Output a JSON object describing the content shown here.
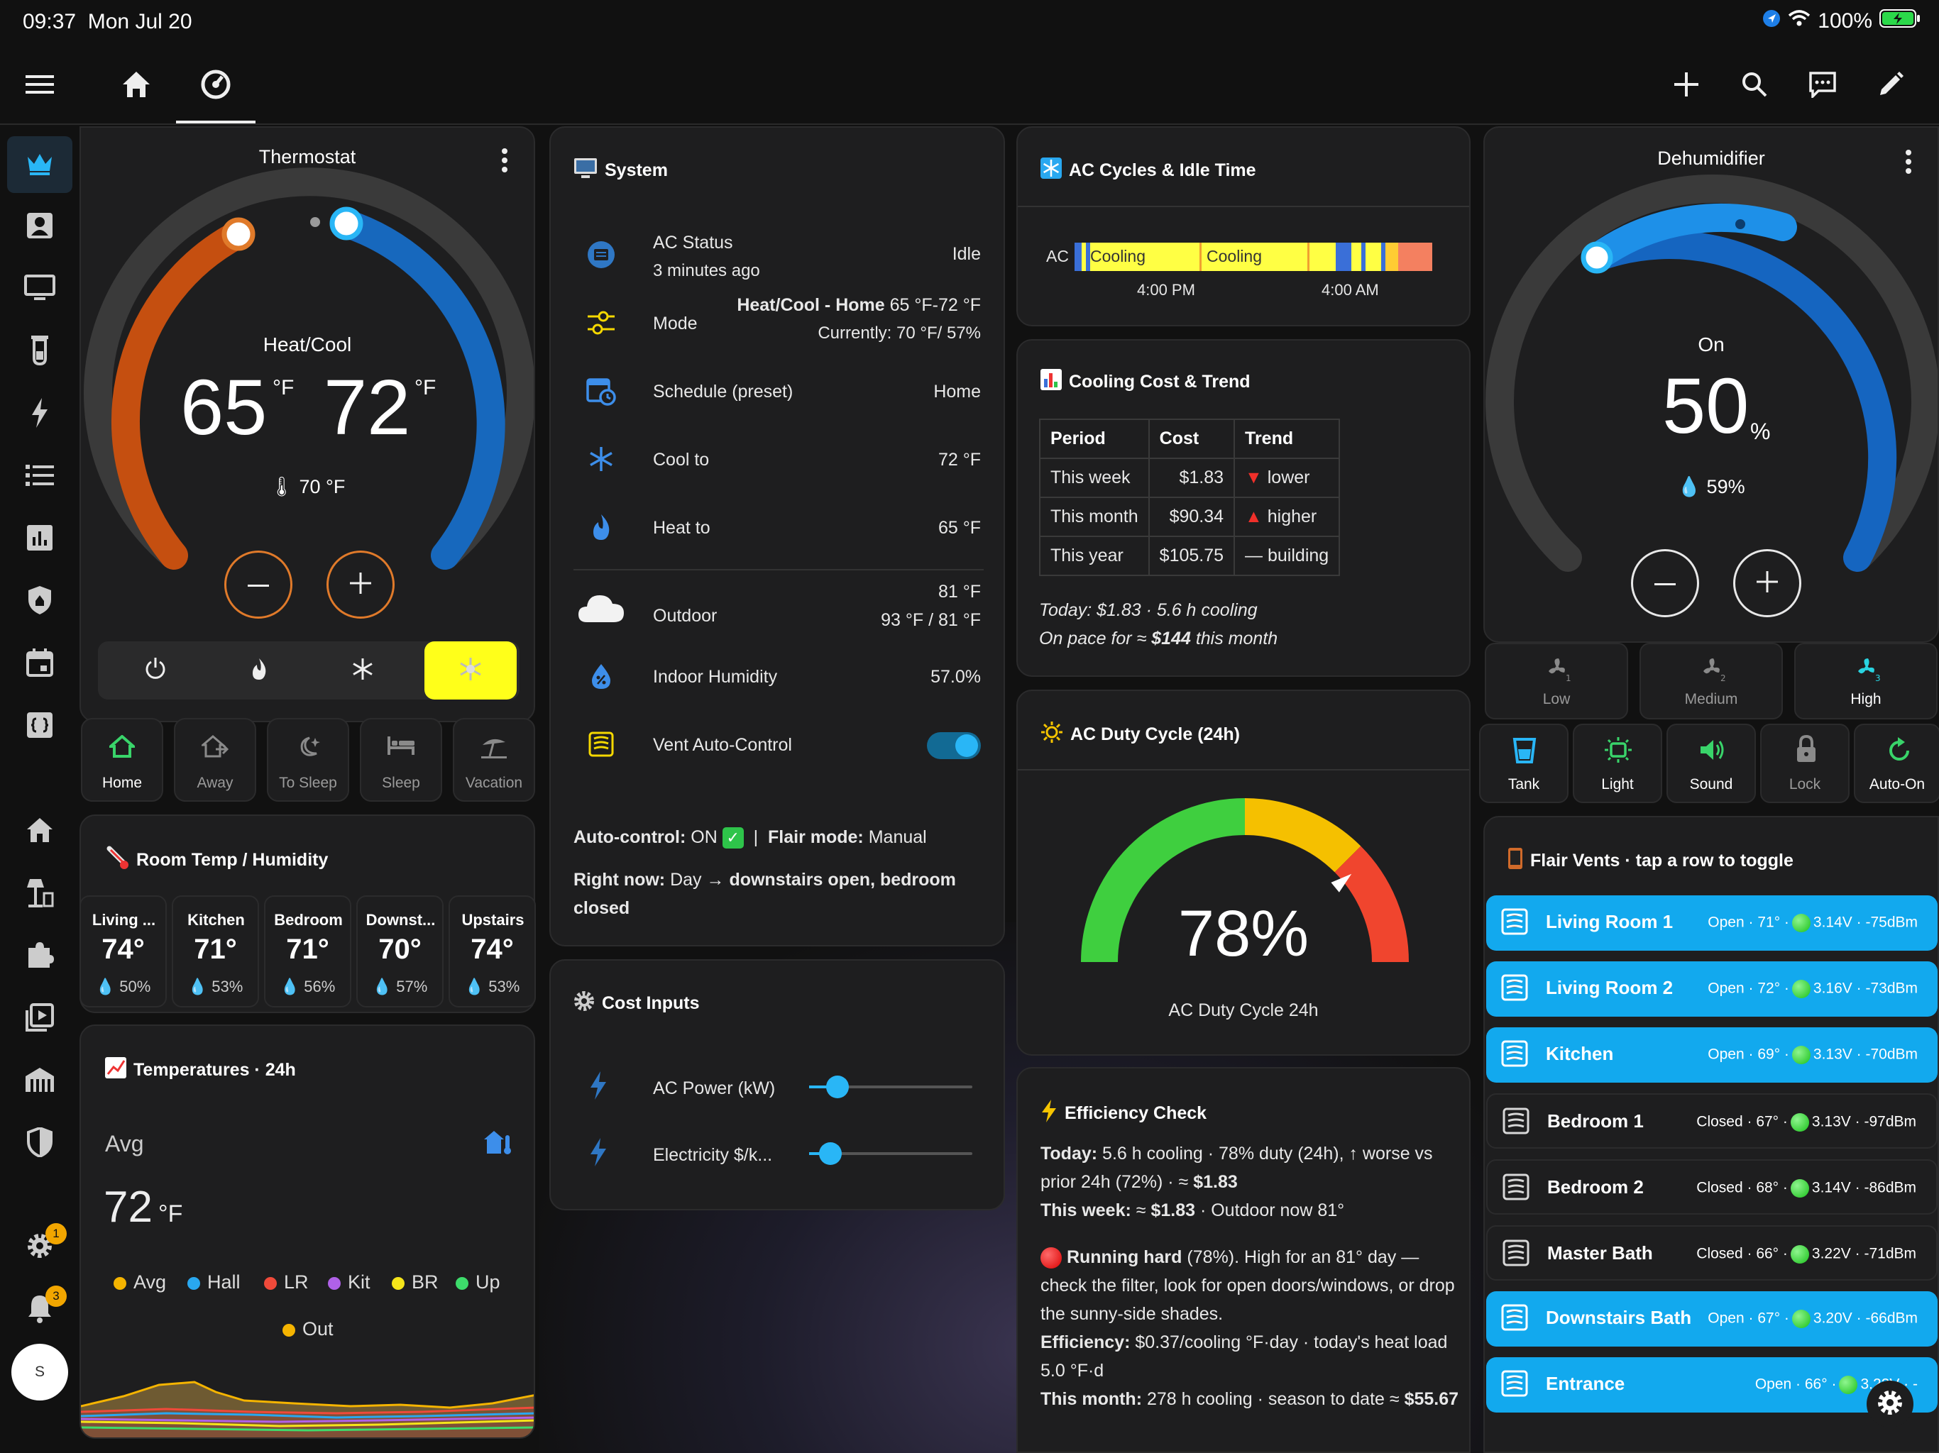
{
  "status_bar": {
    "time": "09:37",
    "date": "Mon Jul 20",
    "battery": "100%"
  },
  "thermostat": {
    "title": "Thermostat",
    "mode_label": "Heat/Cool",
    "heat_setpoint": "65",
    "cool_setpoint": "72",
    "unit": "°F",
    "current_temp": "70 °F",
    "presets": [
      "Home",
      "Away",
      "To Sleep",
      "Sleep",
      "Vacation"
    ]
  },
  "system": {
    "title": "System",
    "ac_status": {
      "label": "AC Status",
      "sub": "3 minutes ago",
      "value": "Idle"
    },
    "mode": {
      "label": "Mode",
      "value_bold": "Heat/Cool - Home",
      "value_rest": " 65 °F-72 °F",
      "sub": "Currently: 70 °F/ 57%"
    },
    "schedule": {
      "label": "Schedule (preset)",
      "value": "Home"
    },
    "cool_to": {
      "label": "Cool to",
      "value": "72 °F"
    },
    "heat_to": {
      "label": "Heat to",
      "value": "65 °F"
    },
    "outdoor": {
      "label": "Outdoor",
      "value": "81 °F",
      "sub": "93 °F / 81 °F"
    },
    "humidity": {
      "label": "Indoor Humidity",
      "value": "57.0%"
    },
    "vent": {
      "label": "Vent Auto-Control"
    },
    "auto_line": {
      "a": "Auto-control:",
      "b": " ON ",
      "c": "|",
      "d": "Flair mode:",
      "e": " Manual"
    },
    "right_now": {
      "a": "Right now:",
      "b": " Day → ",
      "c": "downstairs open, bedroom closed"
    }
  },
  "cost_inputs": {
    "title": "Cost Inputs",
    "power": "AC Power (kW)",
    "price": "Electricity $/k..."
  },
  "room_temp": {
    "title": "Room Temp / Humidity",
    "rooms": [
      {
        "name": "Living ...",
        "temp": "74°",
        "hum": "50%"
      },
      {
        "name": "Kitchen",
        "temp": "71°",
        "hum": "53%"
      },
      {
        "name": "Bedroom",
        "temp": "71°",
        "hum": "56%"
      },
      {
        "name": "Downst...",
        "temp": "70°",
        "hum": "57%"
      },
      {
        "name": "Upstairs",
        "temp": "74°",
        "hum": "53%"
      }
    ]
  },
  "temps_24h": {
    "title": "Temperatures · 24h",
    "avg_label": "Avg",
    "avg_value": "72",
    "unit": "°F",
    "legend": [
      "Avg",
      "Hall",
      "LR",
      "Kit",
      "BR",
      "Up",
      "Out"
    ],
    "colors": [
      "#f5b400",
      "#29a8f0",
      "#f04a3a",
      "#b061e8",
      "#f5e51a",
      "#3ddc6b",
      "#f5b400"
    ]
  },
  "ac_cycles": {
    "title": "AC Cycles & Idle Time",
    "row_label": "AC",
    "seg1": "Cooling",
    "seg2": "Cooling",
    "t1": "4:00 PM",
    "t2": "4:00 AM"
  },
  "cooling_cost": {
    "title": "Cooling Cost & Trend",
    "headers": [
      "Period",
      "Cost",
      "Trend"
    ],
    "rows": [
      {
        "period": "This week",
        "cost": "$1.83",
        "trend": "▼ lower"
      },
      {
        "period": "This month",
        "cost": "$90.34",
        "trend": "▲ higher"
      },
      {
        "period": "This year",
        "cost": "$105.75",
        "trend": "— building"
      }
    ],
    "today": "Today: $1.83 · 5.6 h cooling",
    "pace_a": "On pace for ≈ ",
    "pace_b": "$144",
    "pace_c": " this month"
  },
  "duty": {
    "title": "AC Duty Cycle (24h)",
    "value": "78%",
    "label": "AC Duty Cycle 24h",
    "percent": 78
  },
  "efficiency": {
    "title": "Efficiency Check",
    "l1b": "Today:",
    "l1": " 5.6 h cooling · 78% duty (24h), ↑ worse vs prior 24h (72%) · ≈ ",
    "l1c": "$1.83",
    "l2b": "This week:",
    "l2": " ≈ ",
    "l2c": "$1.83",
    "l2d": " · Outdoor now 81°",
    "l3b": "Running hard",
    "l3": " (78%). High for an 81° day — check the filter, look for open doors/windows, or drop the sunny-side shades.",
    "l4b": "Efficiency:",
    "l4": " $0.37/cooling °F·day · today's heat load 5.0 °F·d",
    "l5b": "This month:",
    "l5": " 278 h cooling · season to date ≈ ",
    "l5c": "$55.67"
  },
  "dehumidifier": {
    "title": "Dehumidifier",
    "state": "On",
    "target": "50",
    "unit": "%",
    "current": "59%",
    "fans": [
      "Low",
      "Medium",
      "High"
    ],
    "features": [
      "Tank",
      "Light",
      "Sound",
      "Lock",
      "Auto-On"
    ]
  },
  "flair": {
    "title": "Flair Vents · tap a row to toggle",
    "vents": [
      {
        "name": "Living Room 1",
        "state": "Open · 71° ·",
        "tail": "3.14V · -75dBm",
        "open": true
      },
      {
        "name": "Living Room 2",
        "state": "Open · 72° ·",
        "tail": "3.16V · -73dBm",
        "open": true
      },
      {
        "name": "Kitchen",
        "state": "Open · 69° ·",
        "tail": "3.13V · -70dBm",
        "open": true
      },
      {
        "name": "Bedroom 1",
        "state": "Closed · 67° ·",
        "tail": "3.13V · -97dBm",
        "open": false
      },
      {
        "name": "Bedroom 2",
        "state": "Closed · 68° ·",
        "tail": "3.14V · -86dBm",
        "open": false
      },
      {
        "name": "Master Bath",
        "state": "Closed · 66° ·",
        "tail": "3.22V · -71dBm",
        "open": false
      },
      {
        "name": "Downstairs Bath",
        "state": "Open · 67° ·",
        "tail": "3.20V · -66dBm",
        "open": true
      },
      {
        "name": "Entrance",
        "state": "Open · 66° ·",
        "tail": "3.22V · -",
        "open": true
      }
    ]
  },
  "sidebar": {
    "badge_settings": "1",
    "badge_notifications": "3",
    "avatar": "S"
  },
  "colors": {
    "accent": "#12a9ee",
    "heat": "#e07a2a",
    "cool": "#1e6fc0",
    "yellow": "#ffff1a"
  }
}
